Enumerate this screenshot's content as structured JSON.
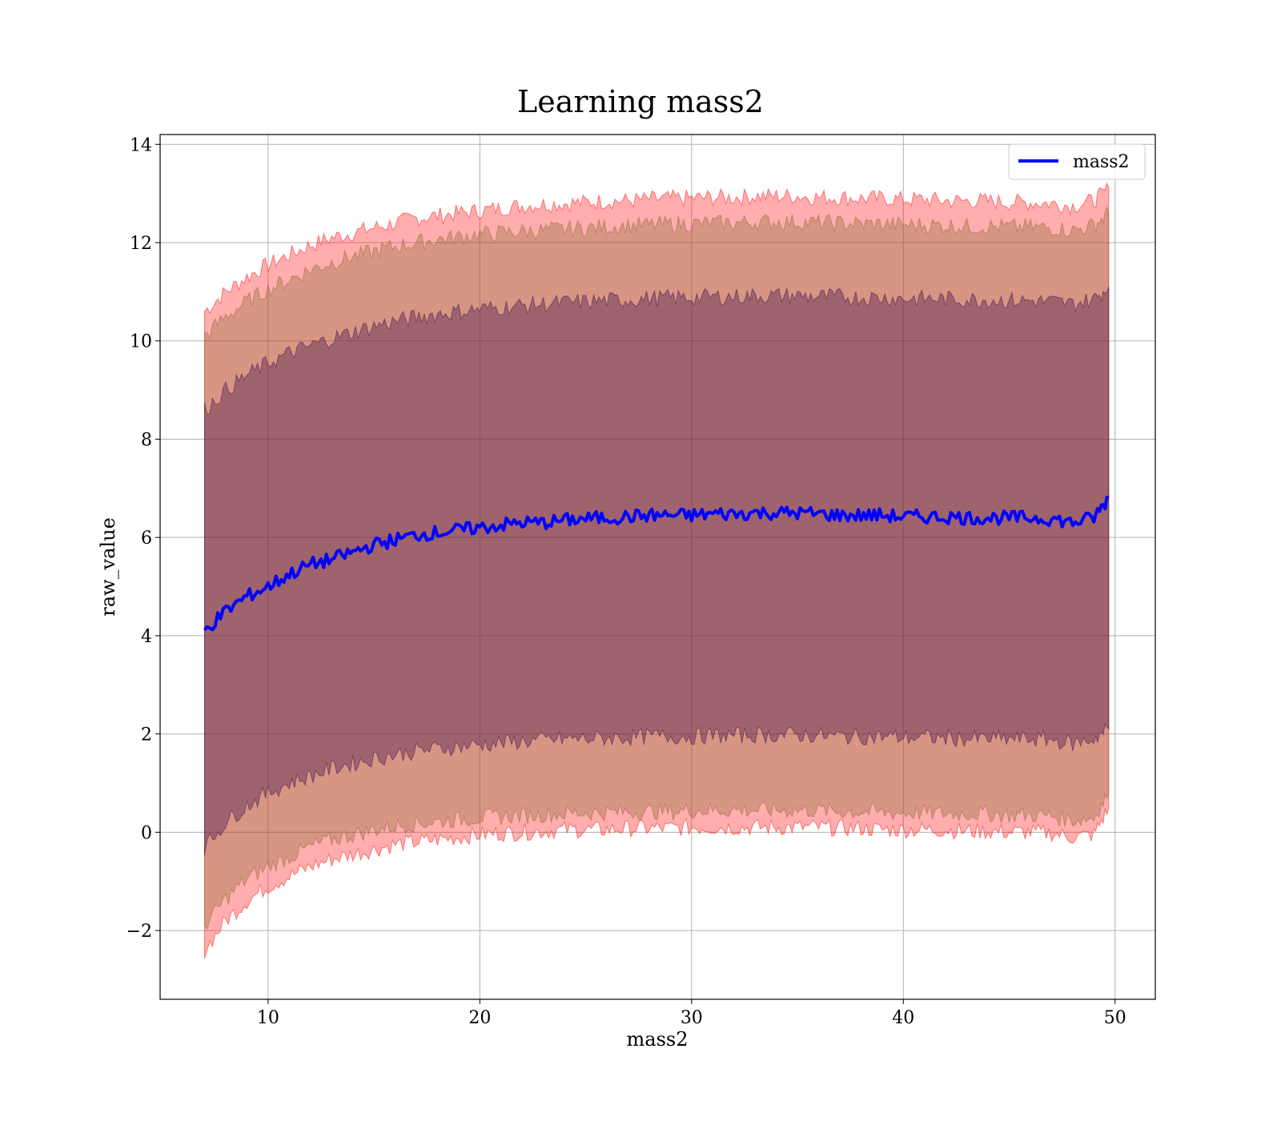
{
  "chart_data": {
    "type": "area",
    "title": "Learning mass2",
    "xlabel": "mass2",
    "ylabel": "raw_value",
    "xlim": [
      4.9,
      51.9
    ],
    "ylim": [
      -3.4,
      14.2
    ],
    "x_ticks": [
      10,
      20,
      30,
      40,
      50
    ],
    "y_ticks": [
      -2,
      0,
      2,
      4,
      6,
      8,
      10,
      12,
      14
    ],
    "x_tick_labels": [
      "10",
      "20",
      "30",
      "40",
      "50"
    ],
    "y_tick_labels": [
      "−2",
      "0",
      "2",
      "4",
      "6",
      "8",
      "10",
      "12",
      "14"
    ],
    "grid": true,
    "legend_position": "top-right",
    "x": [
      7,
      8,
      9,
      10,
      11,
      12,
      13,
      14,
      15,
      16,
      17,
      18,
      19,
      20,
      21,
      22,
      23,
      24,
      25,
      26,
      27,
      28,
      29,
      30,
      31,
      32,
      33,
      34,
      35,
      36,
      37,
      38,
      39,
      40,
      41,
      42,
      43,
      44,
      45,
      46,
      47,
      48,
      49,
      49.7
    ],
    "series": [
      {
        "name": "mass2",
        "color": "#0000ff",
        "values": [
          4.1,
          4.5,
          4.8,
          5.0,
          5.25,
          5.45,
          5.55,
          5.7,
          5.85,
          5.95,
          6.05,
          6.1,
          6.15,
          6.2,
          6.25,
          6.3,
          6.3,
          6.35,
          6.38,
          6.4,
          6.42,
          6.45,
          6.45,
          6.45,
          6.48,
          6.48,
          6.5,
          6.5,
          6.5,
          6.48,
          6.45,
          6.45,
          6.45,
          6.42,
          6.42,
          6.42,
          6.4,
          6.4,
          6.4,
          6.4,
          6.38,
          6.3,
          6.4,
          6.8
        ]
      }
    ],
    "bands": [
      {
        "color": "#ff0000",
        "opacity": 0.32,
        "lower": [
          -2.4,
          -1.8,
          -1.4,
          -1.1,
          -0.9,
          -0.7,
          -0.55,
          -0.45,
          -0.35,
          -0.25,
          -0.2,
          -0.15,
          -0.1,
          -0.05,
          -0.02,
          0.0,
          0.02,
          0.05,
          0.05,
          0.05,
          0.08,
          0.08,
          0.08,
          0.1,
          0.1,
          0.1,
          0.1,
          0.1,
          0.1,
          0.1,
          0.08,
          0.08,
          0.05,
          0.05,
          0.05,
          0.05,
          0.02,
          0.02,
          0.0,
          0.0,
          -0.02,
          -0.1,
          -0.05,
          0.5
        ],
        "upper": [
          10.6,
          11.0,
          11.3,
          11.55,
          11.75,
          11.95,
          12.1,
          12.2,
          12.3,
          12.4,
          12.5,
          12.55,
          12.6,
          12.65,
          12.7,
          12.75,
          12.78,
          12.8,
          12.82,
          12.85,
          12.85,
          12.88,
          12.9,
          12.9,
          12.92,
          12.92,
          12.95,
          12.95,
          12.95,
          12.92,
          12.92,
          12.9,
          12.9,
          12.88,
          12.88,
          12.85,
          12.85,
          12.85,
          12.82,
          12.82,
          12.8,
          12.75,
          12.85,
          13.1
        ]
      },
      {
        "color": "#8b6a3a",
        "opacity": 0.35,
        "lower": [
          -1.9,
          -1.35,
          -0.95,
          -0.7,
          -0.5,
          -0.3,
          -0.15,
          -0.05,
          0.05,
          0.12,
          0.18,
          0.22,
          0.26,
          0.3,
          0.32,
          0.34,
          0.36,
          0.38,
          0.4,
          0.4,
          0.42,
          0.42,
          0.42,
          0.45,
          0.45,
          0.45,
          0.45,
          0.45,
          0.45,
          0.45,
          0.42,
          0.42,
          0.4,
          0.4,
          0.4,
          0.38,
          0.38,
          0.38,
          0.35,
          0.35,
          0.33,
          0.25,
          0.3,
          0.8
        ],
        "upper": [
          10.1,
          10.5,
          10.8,
          11.05,
          11.25,
          11.45,
          11.6,
          11.72,
          11.82,
          11.92,
          12.0,
          12.07,
          12.12,
          12.17,
          12.2,
          12.23,
          12.25,
          12.28,
          12.3,
          12.32,
          12.35,
          12.36,
          12.38,
          12.38,
          12.4,
          12.4,
          12.42,
          12.42,
          12.42,
          12.4,
          12.4,
          12.38,
          12.38,
          12.36,
          12.36,
          12.35,
          12.33,
          12.33,
          12.32,
          12.32,
          12.3,
          12.25,
          12.35,
          12.6
        ]
      },
      {
        "color": "#4b1a4e",
        "opacity": 0.4,
        "lower": [
          -0.3,
          0.2,
          0.55,
          0.8,
          1.0,
          1.15,
          1.3,
          1.4,
          1.5,
          1.58,
          1.65,
          1.7,
          1.75,
          1.78,
          1.82,
          1.85,
          1.87,
          1.9,
          1.9,
          1.92,
          1.93,
          1.95,
          1.95,
          1.95,
          1.97,
          1.97,
          1.98,
          1.98,
          1.98,
          1.97,
          1.95,
          1.95,
          1.95,
          1.93,
          1.93,
          1.92,
          1.9,
          1.9,
          1.9,
          1.9,
          1.88,
          1.8,
          1.9,
          2.1
        ],
        "upper": [
          8.6,
          9.0,
          9.3,
          9.55,
          9.75,
          9.9,
          10.05,
          10.18,
          10.3,
          10.4,
          10.48,
          10.55,
          10.6,
          10.65,
          10.68,
          10.72,
          10.75,
          10.78,
          10.8,
          10.82,
          10.84,
          10.86,
          10.88,
          10.88,
          10.9,
          10.9,
          10.92,
          10.92,
          10.92,
          10.9,
          10.9,
          10.88,
          10.88,
          10.86,
          10.86,
          10.85,
          10.84,
          10.84,
          10.82,
          10.82,
          10.8,
          10.75,
          10.85,
          11.1
        ]
      }
    ]
  }
}
